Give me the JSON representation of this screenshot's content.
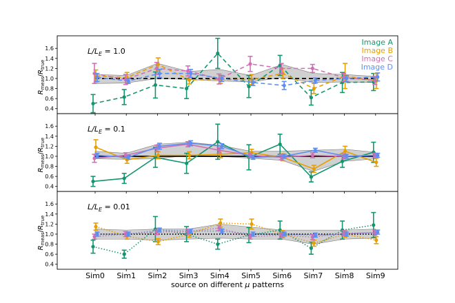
{
  "chart_data": [
    {
      "type": "line",
      "panel_label_main": "L/L",
      "panel_label_sub": "E",
      "panel_label_value": " = 1.0",
      "line_style": "dashed",
      "ref_style": "dashed",
      "ylabel_main": "R",
      "ylabel_sub1": "meas",
      "ylabel_sub2": "true",
      "ylim": [
        0.3,
        1.85
      ],
      "yticks": [
        "0.4",
        "0.6",
        "0.8",
        "1.0",
        "1.2",
        "1.4",
        "1.6"
      ],
      "band": {
        "lower": [
          0.9,
          0.91,
          1.0,
          0.98,
          0.95,
          0.93,
          1.02,
          0.92,
          0.93,
          0.92
        ],
        "upper": [
          1.08,
          1.06,
          1.3,
          1.14,
          1.18,
          1.06,
          1.28,
          1.1,
          1.08,
          1.04
        ]
      },
      "series": [
        {
          "name": "Image A",
          "color": "#13966f",
          "values": [
            0.5,
            0.63,
            0.87,
            0.8,
            1.5,
            0.84,
            1.26,
            0.62,
            0.92,
            0.93
          ],
          "errors": [
            0.18,
            0.15,
            0.26,
            0.2,
            0.3,
            0.22,
            0.2,
            0.15,
            0.2,
            0.17
          ]
        },
        {
          "name": "Image B",
          "color": "#e69f00",
          "values": [
            1.05,
            1.02,
            1.28,
            0.97,
            0.98,
            0.98,
            1.1,
            0.8,
            1.05,
            0.95
          ],
          "errors": [
            0.12,
            0.1,
            0.13,
            0.08,
            0.08,
            0.1,
            0.1,
            0.1,
            0.25,
            0.15
          ]
        },
        {
          "name": "Image C",
          "color": "#d16fb6",
          "values": [
            1.1,
            0.98,
            1.2,
            1.15,
            0.99,
            1.29,
            1.2,
            1.2,
            1.02,
            0.96
          ],
          "errors": [
            0.2,
            0.1,
            0.12,
            0.1,
            0.1,
            0.15,
            0.1,
            0.08,
            0.08,
            0.08
          ]
        },
        {
          "name": "Image D",
          "color": "#5f8df2",
          "values": [
            1.02,
            0.95,
            1.1,
            1.1,
            1.0,
            0.92,
            0.86,
            0.96,
            1.0,
            1.03
          ],
          "errors": [
            0.08,
            0.05,
            0.08,
            0.08,
            0.06,
            0.06,
            0.08,
            0.05,
            0.06,
            0.08
          ]
        }
      ]
    },
    {
      "type": "line",
      "panel_label_main": "L/L",
      "panel_label_sub": "E",
      "panel_label_value": " = 0.1",
      "line_style": "solid",
      "ref_style": "solid",
      "ylabel_main": "R",
      "ylabel_sub1": "meas",
      "ylabel_sub2": "true",
      "ylim": [
        0.3,
        1.85
      ],
      "yticks": [
        "0.4",
        "0.6",
        "0.8",
        "1.0",
        "1.2",
        "1.4",
        "1.6"
      ],
      "band": {
        "lower": [
          0.95,
          0.94,
          0.95,
          1.02,
          1.0,
          0.96,
          0.92,
          0.7,
          0.9,
          0.95
        ],
        "upper": [
          1.1,
          1.06,
          1.24,
          1.28,
          1.22,
          1.1,
          1.1,
          1.12,
          1.14,
          1.08
        ]
      },
      "series": [
        {
          "name": "Image A",
          "color": "#13966f",
          "values": [
            0.5,
            0.56,
            0.98,
            0.86,
            1.29,
            0.98,
            1.24,
            0.59,
            0.9,
            1.08
          ],
          "errors": [
            0.1,
            0.1,
            0.2,
            0.2,
            0.35,
            0.25,
            0.2,
            0.1,
            0.12,
            0.2
          ]
        },
        {
          "name": "Image B",
          "color": "#e69f00",
          "values": [
            1.18,
            0.93,
            1.02,
            1.02,
            1.04,
            1.07,
            0.98,
            0.75,
            1.1,
            0.88
          ],
          "errors": [
            0.15,
            0.07,
            0.07,
            0.07,
            0.07,
            0.07,
            0.07,
            0.07,
            0.1,
            0.08
          ]
        },
        {
          "name": "Image C",
          "color": "#d16fb6",
          "values": [
            0.96,
            1.02,
            1.16,
            1.24,
            1.12,
            1.02,
            0.98,
            1.02,
            1.0,
            1.02
          ],
          "errors": [
            0.08,
            0.05,
            0.06,
            0.05,
            0.05,
            0.05,
            0.05,
            0.05,
            0.05,
            0.04
          ]
        },
        {
          "name": "Image D",
          "color": "#5f8df2",
          "values": [
            1.02,
            0.98,
            1.2,
            1.26,
            1.2,
            0.98,
            1.0,
            1.12,
            1.0,
            1.02
          ],
          "errors": [
            0.04,
            0.04,
            0.06,
            0.05,
            0.05,
            0.04,
            0.04,
            0.04,
            0.04,
            0.04
          ]
        }
      ]
    },
    {
      "type": "line",
      "panel_label_main": "L/L",
      "panel_label_sub": "E",
      "panel_label_value": " = 0.01",
      "line_style": "dotted",
      "ref_style": "dotted",
      "ylabel_main": "R",
      "ylabel_sub1": "meas",
      "ylabel_sub2": "true",
      "ylim": [
        0.3,
        1.85
      ],
      "yticks": [
        "0.4",
        "0.6",
        "0.8",
        "1.0",
        "1.2",
        "1.4",
        "1.6"
      ],
      "band": {
        "lower": [
          0.9,
          0.9,
          0.88,
          0.9,
          0.92,
          0.9,
          0.9,
          0.8,
          0.9,
          0.92
        ],
        "upper": [
          1.1,
          1.08,
          1.1,
          1.1,
          1.2,
          1.14,
          1.08,
          1.08,
          1.08,
          1.1
        ]
      },
      "series": [
        {
          "name": "Image A",
          "color": "#13966f",
          "values": [
            0.75,
            0.6,
            1.1,
            1.0,
            0.8,
            0.98,
            1.08,
            0.72,
            1.08,
            1.18
          ],
          "errors": [
            0.13,
            0.08,
            0.25,
            0.15,
            0.1,
            0.15,
            0.18,
            0.12,
            0.18,
            0.25
          ]
        },
        {
          "name": "Image B",
          "color": "#e69f00",
          "values": [
            1.15,
            0.96,
            0.85,
            1.0,
            1.22,
            1.2,
            1.0,
            0.82,
            1.0,
            0.88
          ],
          "errors": [
            0.07,
            0.06,
            0.06,
            0.06,
            0.08,
            0.1,
            0.07,
            0.06,
            0.06,
            0.07
          ]
        },
        {
          "name": "Image C",
          "color": "#d16fb6",
          "values": [
            0.95,
            1.0,
            1.04,
            1.05,
            1.12,
            0.95,
            0.98,
            0.94,
            1.02,
            1.03
          ],
          "errors": [
            0.05,
            0.05,
            0.05,
            0.05,
            0.05,
            0.05,
            0.05,
            0.05,
            0.05,
            0.05
          ]
        },
        {
          "name": "Image D",
          "color": "#5f8df2",
          "values": [
            1.0,
            1.0,
            1.08,
            1.06,
            1.06,
            1.0,
            1.0,
            0.98,
            1.0,
            1.04
          ],
          "errors": [
            0.04,
            0.04,
            0.04,
            0.04,
            0.04,
            0.04,
            0.04,
            0.04,
            0.04,
            0.04
          ]
        }
      ]
    }
  ],
  "categories": [
    "Sim0",
    "Sim1",
    "Sim2",
    "Sim3",
    "Sim4",
    "Sim5",
    "Sim6",
    "Sim7",
    "Sim8",
    "Sim9"
  ],
  "xlabel_main": "source on different ",
  "xlabel_mu": "μ",
  "xlabel_end": " patterns",
  "legend": [
    "Image A",
    "Image B",
    "Image C",
    "Image D"
  ],
  "legend_colors": [
    "#13966f",
    "#e69f00",
    "#d16fb6",
    "#5f8df2"
  ],
  "reference_value": 1.0
}
